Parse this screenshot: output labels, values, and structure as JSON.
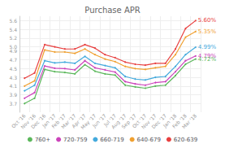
{
  "chart_data": {
    "type": "line",
    "title": "Purchase APR",
    "categories": [
      "Oct '16",
      "Nov '16",
      "Dec '16",
      "Jan '17",
      "Feb '17",
      "Mar '17",
      "Apr '17",
      "May '17",
      "Jun '17",
      "Jul '17",
      "Aug '17",
      "Sep '17",
      "Oct '17",
      "Nov '17",
      "Dec '17",
      "Jan '18",
      "Feb '18",
      "Mar '18"
    ],
    "series": [
      {
        "name": "620-639",
        "color": "#e84040",
        "values": [
          4.28,
          4.4,
          5.05,
          5.0,
          4.95,
          4.95,
          5.05,
          4.97,
          4.82,
          4.75,
          4.65,
          4.6,
          4.58,
          4.62,
          4.62,
          4.95,
          5.42,
          5.6
        ],
        "value_labels": [
          null,
          null,
          null,
          null,
          null,
          null,
          null,
          null,
          null,
          null,
          null,
          null,
          null,
          null,
          null,
          null,
          null,
          "5.60%"
        ]
      },
      {
        "name": "640-679",
        "color": "#f0a030",
        "values": [
          4.1,
          4.22,
          4.93,
          4.88,
          4.88,
          4.85,
          4.95,
          4.82,
          4.72,
          4.66,
          4.55,
          4.5,
          4.48,
          4.52,
          4.55,
          4.82,
          5.22,
          5.35
        ],
        "value_labels": [
          null,
          null,
          null,
          null,
          null,
          null,
          null,
          null,
          null,
          null,
          null,
          null,
          null,
          null,
          null,
          null,
          null,
          "5.35%"
        ]
      },
      {
        "name": "660-719",
        "color": "#44aadd",
        "values": [
          3.99,
          4.12,
          4.68,
          4.63,
          4.65,
          4.62,
          4.78,
          4.62,
          4.57,
          4.52,
          4.32,
          4.26,
          4.24,
          4.3,
          4.32,
          4.55,
          4.82,
          4.99
        ],
        "value_labels": [
          null,
          null,
          null,
          null,
          null,
          null,
          null,
          null,
          null,
          null,
          null,
          null,
          null,
          null,
          null,
          null,
          null,
          "4.99%"
        ]
      },
      {
        "name": "720-759",
        "color": "#cc44bb",
        "values": [
          3.82,
          3.95,
          4.56,
          4.51,
          4.5,
          4.47,
          4.68,
          4.52,
          4.47,
          4.42,
          4.2,
          4.15,
          4.12,
          4.18,
          4.2,
          4.43,
          4.68,
          4.79
        ],
        "value_labels": [
          null,
          null,
          null,
          null,
          null,
          null,
          null,
          null,
          null,
          null,
          null,
          null,
          null,
          null,
          null,
          null,
          null,
          "4.79%"
        ]
      },
      {
        "name": "760+",
        "color": "#5cb85c",
        "values": [
          3.7,
          3.82,
          4.48,
          4.43,
          4.41,
          4.38,
          4.59,
          4.44,
          4.38,
          4.35,
          4.12,
          4.08,
          4.05,
          4.1,
          4.12,
          4.34,
          4.6,
          4.72
        ],
        "value_labels": [
          null,
          null,
          null,
          null,
          null,
          null,
          null,
          null,
          null,
          null,
          null,
          null,
          null,
          null,
          null,
          null,
          null,
          "4.72%"
        ]
      }
    ],
    "ylim": [
      3.5,
      5.7
    ],
    "yticks": [
      3.7,
      3.9,
      4.1,
      4.3,
      4.5,
      4.7,
      4.9,
      {
        "value": 5.0,
        "label": "5.0"
      },
      5.2,
      5.4,
      5.6
    ],
    "grid": true,
    "legend": "bottom"
  }
}
